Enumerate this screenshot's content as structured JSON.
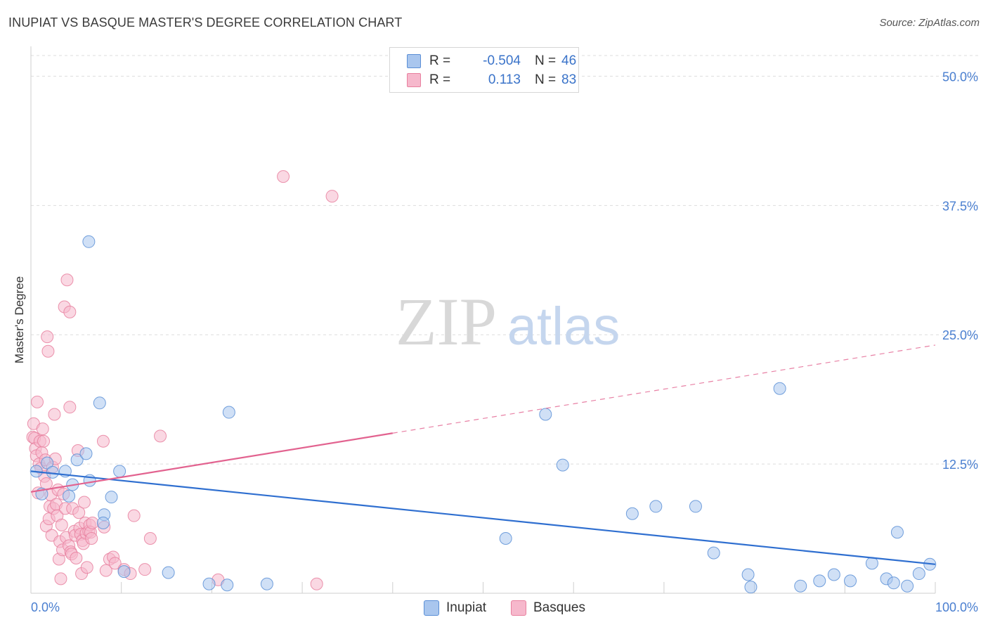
{
  "title": "INUPIAT VS BASQUE MASTER'S DEGREE CORRELATION CHART",
  "source": "Source: ZipAtlas.com",
  "watermark": {
    "zip": "ZIP",
    "atlas": "atlas"
  },
  "colors": {
    "inupiat_fill": "#a9c6ee",
    "inupiat_stroke": "#5b8fd6",
    "inupiat_line": "#2f6fd0",
    "basques_fill": "#f6b8cc",
    "basques_stroke": "#e8809f",
    "basques_line": "#e2628f",
    "tick_text": "#4a7fd0",
    "grid": "#dddddd"
  },
  "stats": [
    {
      "r_label": "R =",
      "r_value": "-0.504",
      "n_label": "N =",
      "n_value": "46",
      "series": "Inupiat"
    },
    {
      "r_label": "R =",
      "r_value": "0.113",
      "n_label": "N =",
      "n_value": "83",
      "series": "Basques"
    }
  ],
  "legend": [
    {
      "label": "Inupiat"
    },
    {
      "label": "Basques"
    }
  ],
  "chart_data": {
    "type": "scatter",
    "title": "INUPIAT VS BASQUE MASTER'S DEGREE CORRELATION CHART",
    "xlabel": "",
    "ylabel": "Master's Degree",
    "xlim": [
      0,
      100
    ],
    "ylim": [
      0,
      52
    ],
    "x_tick_labels": [
      "0.0%",
      "100.0%"
    ],
    "y_ticks": [
      12.5,
      25.0,
      37.5,
      50.0
    ],
    "y_tick_labels": [
      "12.5%",
      "25.0%",
      "37.5%",
      "50.0%"
    ],
    "grid": "horizontal dashed",
    "legend_position": "bottom-center",
    "series": [
      {
        "name": "Inupiat",
        "trend": {
          "x": [
            0,
            100
          ],
          "y": [
            11.8,
            2.8
          ],
          "style": "solid",
          "solid_to": 100
        },
        "points": [
          [
            0.6,
            11.8
          ],
          [
            1.2,
            9.6
          ],
          [
            1.8,
            12.6
          ],
          [
            2.4,
            11.7
          ],
          [
            3.8,
            11.8
          ],
          [
            4.2,
            9.4
          ],
          [
            4.6,
            10.5
          ],
          [
            5.1,
            12.9
          ],
          [
            6.1,
            13.5
          ],
          [
            6.5,
            10.9
          ],
          [
            6.4,
            34.0
          ],
          [
            7.6,
            18.4
          ],
          [
            8.1,
            7.6
          ],
          [
            8.0,
            6.8
          ],
          [
            8.9,
            9.3
          ],
          [
            9.8,
            11.8
          ],
          [
            10.3,
            2.1
          ],
          [
            15.2,
            2.0
          ],
          [
            19.7,
            0.9
          ],
          [
            21.7,
            0.8
          ],
          [
            21.9,
            17.5
          ],
          [
            26.1,
            0.9
          ],
          [
            52.5,
            5.3
          ],
          [
            56.9,
            17.3
          ],
          [
            58.8,
            12.4
          ],
          [
            66.5,
            7.7
          ],
          [
            69.1,
            8.4
          ],
          [
            73.5,
            8.4
          ],
          [
            75.5,
            3.9
          ],
          [
            79.3,
            1.8
          ],
          [
            79.6,
            0.6
          ],
          [
            82.8,
            19.8
          ],
          [
            85.1,
            0.7
          ],
          [
            87.2,
            1.2
          ],
          [
            88.8,
            1.8
          ],
          [
            90.6,
            1.2
          ],
          [
            93.0,
            2.9
          ],
          [
            94.6,
            1.4
          ],
          [
            95.4,
            1.0
          ],
          [
            95.8,
            5.9
          ],
          [
            96.9,
            0.7
          ],
          [
            98.2,
            1.9
          ],
          [
            99.4,
            2.8
          ]
        ]
      },
      {
        "name": "Basques",
        "trend": {
          "x": [
            0,
            100
          ],
          "y": [
            9.8,
            24.0
          ],
          "style": "solid-then-dashed",
          "solid_to": 40
        },
        "points": [
          [
            0.2,
            15.1
          ],
          [
            0.3,
            16.4
          ],
          [
            0.4,
            15.0
          ],
          [
            0.5,
            14.0
          ],
          [
            0.6,
            13.3
          ],
          [
            0.7,
            18.5
          ],
          [
            0.8,
            9.7
          ],
          [
            0.9,
            12.5
          ],
          [
            1.0,
            14.7
          ],
          [
            1.1,
            12.1
          ],
          [
            1.2,
            13.6
          ],
          [
            1.3,
            15.9
          ],
          [
            1.4,
            14.7
          ],
          [
            1.5,
            11.3
          ],
          [
            1.6,
            12.9
          ],
          [
            1.7,
            6.5
          ],
          [
            1.7,
            10.6
          ],
          [
            1.8,
            24.8
          ],
          [
            1.9,
            23.4
          ],
          [
            2.0,
            7.2
          ],
          [
            2.1,
            8.4
          ],
          [
            2.2,
            9.5
          ],
          [
            2.3,
            5.6
          ],
          [
            2.4,
            12.2
          ],
          [
            2.5,
            8.2
          ],
          [
            2.6,
            17.3
          ],
          [
            2.7,
            13.0
          ],
          [
            2.8,
            8.6
          ],
          [
            2.9,
            7.5
          ],
          [
            3.0,
            10.0
          ],
          [
            3.1,
            3.3
          ],
          [
            3.2,
            5.0
          ],
          [
            3.3,
            1.4
          ],
          [
            3.4,
            6.6
          ],
          [
            3.5,
            4.2
          ],
          [
            3.6,
            9.6
          ],
          [
            3.7,
            27.7
          ],
          [
            3.8,
            8.2
          ],
          [
            3.9,
            5.4
          ],
          [
            4.0,
            30.3
          ],
          [
            4.2,
            4.6
          ],
          [
            4.3,
            18.0
          ],
          [
            4.3,
            27.2
          ],
          [
            4.4,
            4.0
          ],
          [
            4.5,
            3.8
          ],
          [
            4.6,
            8.2
          ],
          [
            4.8,
            6.0
          ],
          [
            4.9,
            5.6
          ],
          [
            5.0,
            3.4
          ],
          [
            5.2,
            13.8
          ],
          [
            5.3,
            7.8
          ],
          [
            5.4,
            6.3
          ],
          [
            5.5,
            5.7
          ],
          [
            5.6,
            1.9
          ],
          [
            5.7,
            5.1
          ],
          [
            5.8,
            4.8
          ],
          [
            5.9,
            8.8
          ],
          [
            6.0,
            6.8
          ],
          [
            6.1,
            5.8
          ],
          [
            6.2,
            2.5
          ],
          [
            6.4,
            6.0
          ],
          [
            6.5,
            6.6
          ],
          [
            6.6,
            5.9
          ],
          [
            6.7,
            5.3
          ],
          [
            6.8,
            6.8
          ],
          [
            8.0,
            14.7
          ],
          [
            8.1,
            6.4
          ],
          [
            8.3,
            2.2
          ],
          [
            8.7,
            3.3
          ],
          [
            9.1,
            3.5
          ],
          [
            9.3,
            2.9
          ],
          [
            10.3,
            2.3
          ],
          [
            11.0,
            1.9
          ],
          [
            11.4,
            7.5
          ],
          [
            12.6,
            2.3
          ],
          [
            13.2,
            5.3
          ],
          [
            14.3,
            15.2
          ],
          [
            20.7,
            1.3
          ],
          [
            27.9,
            40.3
          ],
          [
            31.6,
            0.9
          ],
          [
            33.3,
            38.4
          ]
        ]
      }
    ]
  }
}
